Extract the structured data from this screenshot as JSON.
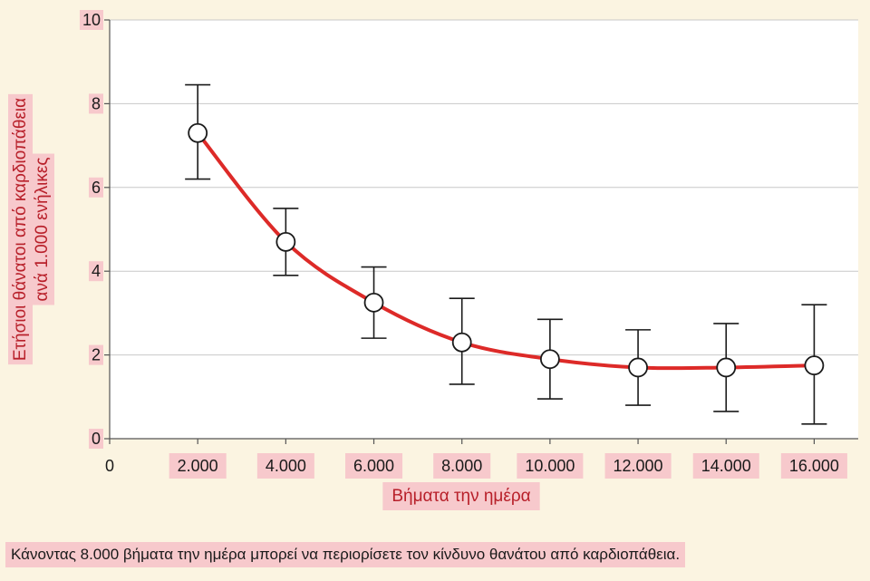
{
  "chart_data": {
    "type": "line",
    "x": [
      2000,
      4000,
      6000,
      8000,
      10000,
      12000,
      14000,
      16000
    ],
    "y": [
      7.3,
      4.7,
      3.25,
      2.3,
      1.9,
      1.7,
      1.7,
      1.75
    ],
    "error_low": [
      6.2,
      3.9,
      2.4,
      1.3,
      0.95,
      0.8,
      0.65,
      0.35
    ],
    "error_high": [
      8.45,
      5.5,
      4.1,
      3.35,
      2.85,
      2.6,
      2.75,
      3.2
    ],
    "xlim": [
      0,
      17000
    ],
    "ylim": [
      0,
      10
    ],
    "x_ticks": [
      0,
      2000,
      4000,
      6000,
      8000,
      10000,
      12000,
      14000,
      16000
    ],
    "x_tick_labels": [
      "0",
      "2.000",
      "4.000",
      "6.000",
      "8.000",
      "10.000",
      "12.000",
      "14.000",
      "16.000"
    ],
    "y_ticks": [
      0,
      2,
      4,
      6,
      8,
      10
    ],
    "y_tick_labels": [
      "0",
      "2",
      "4",
      "6",
      "8",
      "10"
    ],
    "xlabel": "Βήματα την ημέρα",
    "ylabel_line1": "Ετήσιοι θάνατοι από καρδιοπάθεια",
    "ylabel_line2": "ανά 1.000 ενήλικες",
    "grid": true,
    "colors": {
      "line": "#dd2a28",
      "marker_fill": "#ffffff",
      "marker_stroke": "#1a1a1a",
      "grid": "#c8c8c8",
      "label_highlight": "#f7c9cc",
      "axis_title": "#b8202a",
      "page_background": "#fbf4e1",
      "plot_background": "#ffffff"
    }
  },
  "caption": "Κάνοντας 8.000 βήματα την ημέρα μπορεί να περιορίσετε τον κίνδυνο θανάτου από καρδιοπάθεια."
}
